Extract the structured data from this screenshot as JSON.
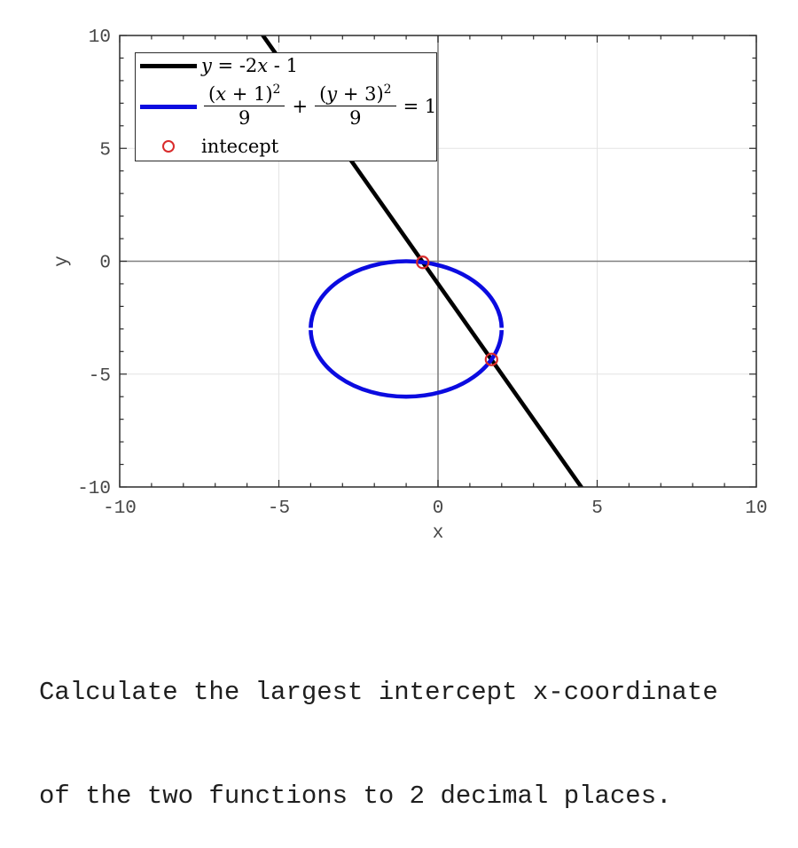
{
  "chart_data": {
    "type": "line",
    "title": "",
    "xlabel": "x",
    "ylabel": "y",
    "xlim": [
      -10,
      10
    ],
    "ylim": [
      -10,
      10
    ],
    "major_ticks": [
      -10,
      -5,
      0,
      5,
      10
    ],
    "minor_tick_step": 1,
    "grid": true,
    "zero_lines": true,
    "legend_position": "upper left",
    "colors": {
      "grid": "#e4e4e4",
      "zero_line": "#808080",
      "frame": "#2b2b2b",
      "tick_label": "#474747"
    },
    "series": [
      {
        "name": "y = -2x - 1",
        "kind": "linear",
        "slope": -2,
        "intercept": -1,
        "color": "#000000",
        "line_width": 4.6
      },
      {
        "name": "(x + 1)^2 / 9 + (y + 3)^2 / 9 = 1",
        "kind": "ellipse",
        "center": [
          -1,
          -3
        ],
        "rx": 3,
        "ry": 3,
        "color": "#0b0be0",
        "line_width": 4.6
      },
      {
        "name": "intecept",
        "kind": "scatter",
        "marker": "open-circle",
        "color": "#d92b2b",
        "marker_radius": 6.5,
        "points": [
          [
            -0.48,
            -0.05
          ],
          [
            1.68,
            -4.35
          ]
        ]
      }
    ]
  },
  "legend": {
    "line_entry": {
      "var1": "y",
      "mid": " = -2",
      "var2": "x",
      "tail": " - 1"
    },
    "ellipse_entry": {
      "num1_pre": "(",
      "num1_var": "x",
      "num1_post": " + 1)",
      "num1_exp": "2",
      "den1": "9",
      "plus": "+",
      "num2_pre": "(",
      "num2_var": "y",
      "num2_post": " + 3)",
      "num2_exp": "2",
      "den2": "9",
      "eq": "= 1"
    },
    "intercept_entry": {
      "label": "intecept"
    }
  },
  "caption": {
    "line1": "Calculate the largest intercept x-coordinate",
    "line2": "of the two functions to 2 decimal places."
  }
}
